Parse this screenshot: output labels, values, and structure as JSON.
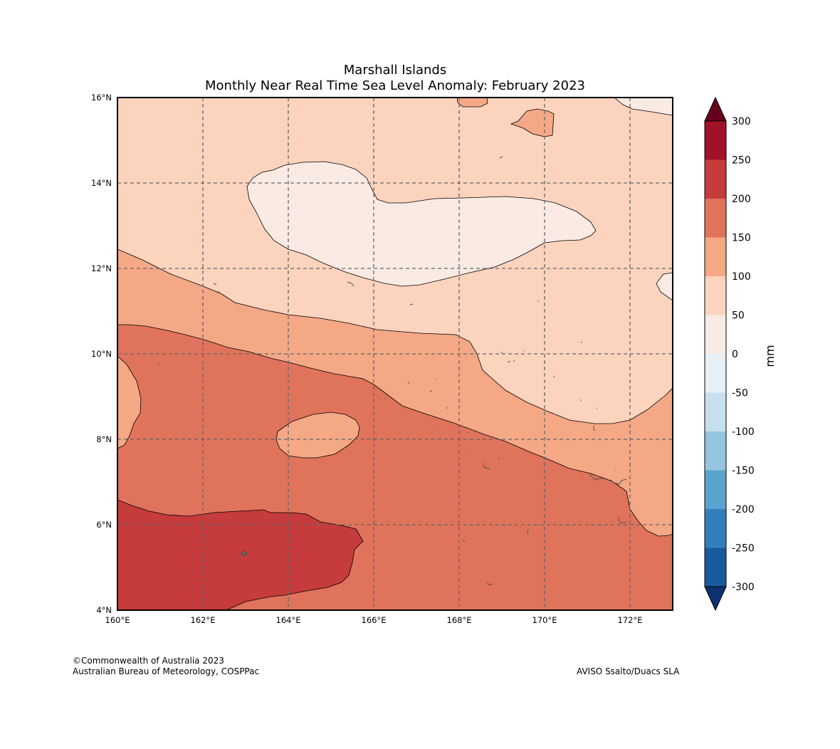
{
  "title_line1": "Marshall Islands",
  "title_line2": "Monthly Near Real Time Sea Level Anomaly: February 2023",
  "map": {
    "lon_range": [
      160,
      173
    ],
    "lat_range": [
      4,
      16
    ],
    "x_ticks": [
      "160°E",
      "162°E",
      "164°E",
      "166°E",
      "168°E",
      "170°E",
      "172°E"
    ],
    "y_ticks": [
      "4°N",
      "6°N",
      "8°N",
      "10°N",
      "12°N",
      "14°N",
      "16°N"
    ],
    "gridlines": "dashed"
  },
  "colorbar": {
    "unit": "mm",
    "levels": [
      "300",
      "250",
      "200",
      "150",
      "100",
      "50",
      "0",
      "-50",
      "-100",
      "-150",
      "-200",
      "-250",
      "-300"
    ],
    "colors": [
      "#a11228",
      "#c63b3b",
      "#e0735c",
      "#f4a886",
      "#fcd3bd",
      "#f9ebe4",
      "#e6eff5",
      "#c8e0ee",
      "#96c6df",
      "#5aa3cf",
      "#327fbc",
      "#1a5b9e"
    ],
    "over_color": "#67001f",
    "under_color": "#0c3270"
  },
  "footer": {
    "credit_line1": "©Commonwealth of Australia 2023",
    "credit_line2": "Australian Bureau of Meteorology, COSPPac",
    "source": "AVISO Ssalto/Duacs SLA"
  }
}
